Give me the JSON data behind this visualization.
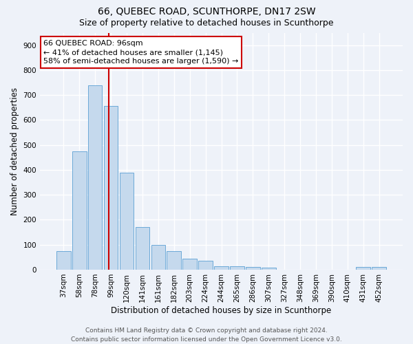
{
  "title": "66, QUEBEC ROAD, SCUNTHORPE, DN17 2SW",
  "subtitle": "Size of property relative to detached houses in Scunthorpe",
  "xlabel": "Distribution of detached houses by size in Scunthorpe",
  "ylabel": "Number of detached properties",
  "categories": [
    "37sqm",
    "58sqm",
    "78sqm",
    "99sqm",
    "120sqm",
    "141sqm",
    "161sqm",
    "182sqm",
    "203sqm",
    "224sqm",
    "244sqm",
    "265sqm",
    "286sqm",
    "307sqm",
    "327sqm",
    "348sqm",
    "369sqm",
    "390sqm",
    "410sqm",
    "431sqm",
    "452sqm"
  ],
  "values": [
    75,
    475,
    740,
    655,
    390,
    172,
    98,
    75,
    45,
    35,
    14,
    13,
    12,
    8,
    0,
    0,
    0,
    0,
    0,
    10,
    10
  ],
  "bar_color": "#c5d9ed",
  "bar_edge_color": "#5a9fd4",
  "vline_x_index": 2.87,
  "vline_color": "#cc0000",
  "annotation_text": "66 QUEBEC ROAD: 96sqm\n← 41% of detached houses are smaller (1,145)\n58% of semi-detached houses are larger (1,590) →",
  "annotation_box_facecolor": "#ffffff",
  "annotation_box_edgecolor": "#cc0000",
  "ylim": [
    0,
    950
  ],
  "yticks": [
    0,
    100,
    200,
    300,
    400,
    500,
    600,
    700,
    800,
    900
  ],
  "background_color": "#eef2f9",
  "grid_color": "#ffffff",
  "footer_text": "Contains HM Land Registry data © Crown copyright and database right 2024.\nContains public sector information licensed under the Open Government Licence v3.0.",
  "title_fontsize": 10,
  "subtitle_fontsize": 9,
  "xlabel_fontsize": 8.5,
  "ylabel_fontsize": 8.5,
  "tick_fontsize": 7.5,
  "annotation_fontsize": 8,
  "footer_fontsize": 6.5
}
